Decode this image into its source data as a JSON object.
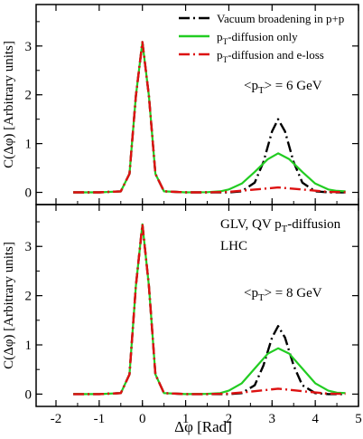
{
  "chart_data": [
    {
      "type": "line",
      "panel": "top",
      "xlim": [
        -2,
        5
      ],
      "ylim": [
        -0.25,
        3.85
      ],
      "y_ticks": [
        0,
        1,
        2,
        3
      ],
      "ylabel": "C(Δφ) [Arbitrary units]",
      "grid": false,
      "legend_position": "top-right",
      "annotations": [
        {
          "text": "<p",
          "sub": "T",
          "suffix": "> = 6 GeV"
        }
      ],
      "series": [
        {
          "name": "Vacuum broadening in p+p",
          "color": "#000000",
          "dash": "dash-dot",
          "x": [
            -1.6,
            -1.0,
            -0.5,
            -0.3,
            -0.15,
            0.0,
            0.15,
            0.3,
            0.5,
            1.0,
            1.5,
            2.0,
            2.3,
            2.6,
            2.8,
            3.0,
            3.14,
            3.3,
            3.5,
            3.7,
            4.0,
            4.3,
            4.7
          ],
          "y": [
            0,
            0,
            0.02,
            0.38,
            1.98,
            3.08,
            1.98,
            0.38,
            0.02,
            0,
            0,
            0,
            0.02,
            0.2,
            0.62,
            1.25,
            1.5,
            1.25,
            0.62,
            0.2,
            0.02,
            0,
            0
          ]
        },
        {
          "name": "p_T-diffusion only",
          "color": "#22cc22",
          "dash": "solid",
          "x": [
            -1.6,
            -1.0,
            -0.5,
            -0.3,
            -0.15,
            0.0,
            0.15,
            0.3,
            0.5,
            1.0,
            1.5,
            1.8,
            2.0,
            2.3,
            2.6,
            2.9,
            3.14,
            3.4,
            3.7,
            4.0,
            4.3,
            4.5,
            4.7
          ],
          "y": [
            0,
            0,
            0.02,
            0.38,
            1.98,
            3.08,
            1.98,
            0.38,
            0.02,
            0,
            0.005,
            0.02,
            0.06,
            0.18,
            0.42,
            0.68,
            0.8,
            0.68,
            0.42,
            0.18,
            0.06,
            0.03,
            0.02
          ]
        },
        {
          "name": "p_T-diffusion and e-loss",
          "color": "#dd1111",
          "dash": "dash-dot",
          "x": [
            -1.6,
            -1.0,
            -0.5,
            -0.3,
            -0.15,
            0.0,
            0.15,
            0.3,
            0.5,
            1.0,
            1.5,
            2.0,
            2.5,
            3.14,
            3.8,
            4.3,
            4.7
          ],
          "y": [
            0,
            0,
            0.02,
            0.38,
            1.98,
            3.08,
            1.98,
            0.38,
            0.02,
            0,
            0,
            0.01,
            0.05,
            0.1,
            0.05,
            0.01,
            0.005
          ]
        }
      ]
    },
    {
      "type": "line",
      "panel": "bottom",
      "xlim": [
        -2,
        5
      ],
      "ylim": [
        -0.25,
        3.85
      ],
      "x_ticks": [
        -2,
        -1,
        0,
        1,
        2,
        3,
        4,
        5
      ],
      "y_ticks": [
        0,
        1,
        2,
        3
      ],
      "xlabel": "Δφ  [Rad]",
      "ylabel": "C(Δφ) [Arbitrary units]",
      "grid": false,
      "annotations": [
        {
          "text": "GLV, QV p",
          "sub": "T",
          "suffix": "-diffusion"
        },
        {
          "text": "LHC"
        },
        {
          "text": "<p",
          "sub": "T",
          "suffix": "> = 8 GeV"
        }
      ],
      "series": [
        {
          "name": "Vacuum broadening in p+p",
          "color": "#000000",
          "dash": "dash-dot",
          "x": [
            -1.6,
            -1.0,
            -0.5,
            -0.3,
            -0.15,
            0.0,
            0.15,
            0.3,
            0.5,
            1.0,
            1.5,
            2.0,
            2.3,
            2.6,
            2.8,
            3.0,
            3.14,
            3.3,
            3.5,
            3.7,
            4.0,
            4.3,
            4.7
          ],
          "y": [
            0,
            0,
            0.02,
            0.4,
            2.2,
            3.45,
            2.2,
            0.4,
            0.02,
            0,
            0,
            0,
            0.02,
            0.18,
            0.58,
            1.15,
            1.38,
            1.15,
            0.58,
            0.18,
            0.02,
            0,
            0
          ]
        },
        {
          "name": "p_T-diffusion only",
          "color": "#22cc22",
          "dash": "solid",
          "x": [
            -1.6,
            -1.0,
            -0.5,
            -0.3,
            -0.15,
            0.0,
            0.15,
            0.3,
            0.5,
            1.0,
            1.5,
            1.8,
            2.0,
            2.3,
            2.6,
            2.9,
            3.14,
            3.4,
            3.7,
            4.0,
            4.3,
            4.5,
            4.7
          ],
          "y": [
            0,
            0,
            0.02,
            0.4,
            2.2,
            3.45,
            2.2,
            0.4,
            0.02,
            0,
            0.005,
            0.02,
            0.07,
            0.22,
            0.52,
            0.82,
            0.93,
            0.82,
            0.52,
            0.22,
            0.07,
            0.03,
            0.02
          ]
        },
        {
          "name": "p_T-diffusion and e-loss",
          "color": "#dd1111",
          "dash": "dash-dot",
          "x": [
            -1.6,
            -1.0,
            -0.5,
            -0.3,
            -0.15,
            0.0,
            0.15,
            0.3,
            0.5,
            1.0,
            1.5,
            2.0,
            2.5,
            3.14,
            3.8,
            4.3,
            4.7
          ],
          "y": [
            0,
            0,
            0.02,
            0.4,
            2.2,
            3.45,
            2.2,
            0.4,
            0.02,
            0,
            0,
            0.01,
            0.05,
            0.11,
            0.05,
            0.01,
            0.005
          ]
        }
      ]
    }
  ],
  "legend": [
    {
      "text": "Vacuum broadening in p+p",
      "color": "#000000",
      "dash": "dash-dot"
    },
    {
      "text": "p",
      "sub": "T",
      "suffix": "-diffusion only",
      "color": "#22cc22",
      "dash": "solid"
    },
    {
      "text": "p",
      "sub": "T",
      "suffix": "-diffusion and e-loss",
      "color": "#dd1111",
      "dash": "dash-dot"
    }
  ]
}
